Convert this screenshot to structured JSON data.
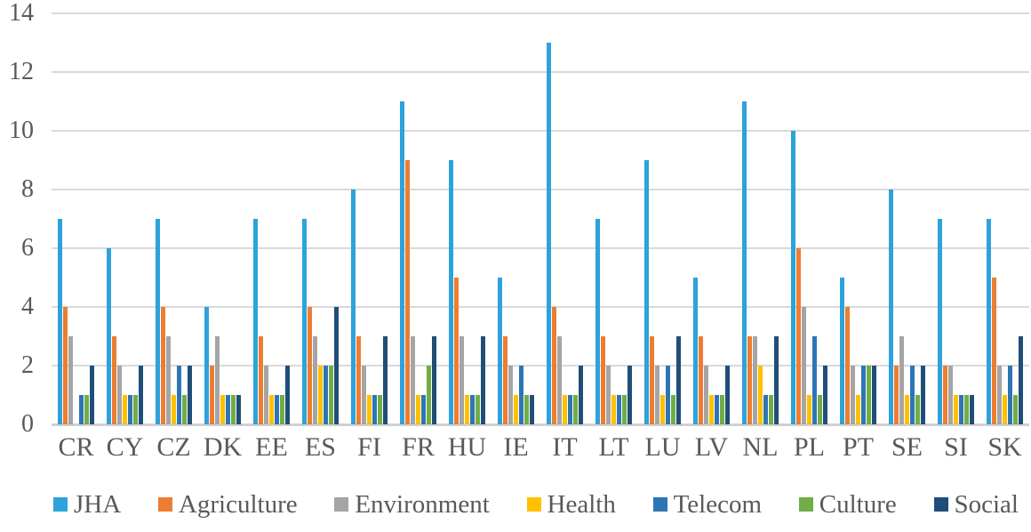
{
  "chart_data": {
    "type": "bar",
    "title": "",
    "xlabel": "",
    "ylabel": "",
    "ylim": [
      0,
      14
    ],
    "y_ticks": [
      0,
      2,
      4,
      6,
      8,
      10,
      12,
      14
    ],
    "grid": "horizontal",
    "gridline_color": "#d9d9d9",
    "axis_text_color": "#595959",
    "legend_position": "bottom",
    "categories": [
      "CR",
      "CY",
      "CZ",
      "DK",
      "EE",
      "ES",
      "FI",
      "FR",
      "HU",
      "IE",
      "IT",
      "LT",
      "LU",
      "LV",
      "NL",
      "PL",
      "PT",
      "SE",
      "SI",
      "SK"
    ],
    "series": [
      {
        "name": "JHA",
        "color": "#2da2db",
        "values": [
          7,
          6,
          7,
          4,
          7,
          7,
          8,
          11,
          9,
          5,
          13,
          7,
          9,
          5,
          11,
          10,
          5,
          8,
          7,
          7
        ]
      },
      {
        "name": "Agriculture",
        "color": "#ed7d31",
        "values": [
          4,
          3,
          4,
          2,
          3,
          4,
          3,
          9,
          5,
          3,
          4,
          3,
          3,
          3,
          3,
          6,
          4,
          2,
          2,
          5
        ]
      },
      {
        "name": "Environment",
        "color": "#a5a5a5",
        "values": [
          3,
          2,
          3,
          3,
          2,
          3,
          2,
          3,
          3,
          2,
          3,
          2,
          2,
          2,
          3,
          4,
          2,
          3,
          2,
          2
        ]
      },
      {
        "name": "Health",
        "color": "#ffc000",
        "values": [
          0,
          1,
          1,
          1,
          1,
          2,
          1,
          1,
          1,
          1,
          1,
          1,
          1,
          1,
          2,
          1,
          1,
          1,
          1,
          1
        ]
      },
      {
        "name": "Telecom",
        "color": "#2e75b6",
        "values": [
          1,
          1,
          2,
          1,
          1,
          2,
          1,
          1,
          1,
          2,
          1,
          1,
          2,
          1,
          1,
          3,
          2,
          2,
          1,
          2
        ]
      },
      {
        "name": "Culture",
        "color": "#70ad47",
        "values": [
          1,
          1,
          1,
          1,
          1,
          2,
          1,
          2,
          1,
          1,
          1,
          1,
          1,
          1,
          1,
          1,
          2,
          1,
          1,
          1
        ]
      },
      {
        "name": "Social",
        "color": "#1f4e79",
        "values": [
          2,
          2,
          2,
          1,
          2,
          4,
          3,
          3,
          3,
          1,
          2,
          2,
          3,
          2,
          3,
          2,
          2,
          2,
          1,
          3
        ]
      }
    ]
  }
}
